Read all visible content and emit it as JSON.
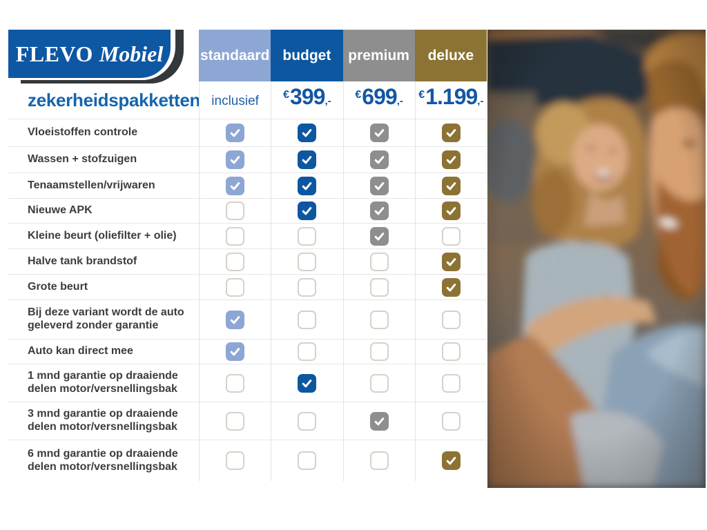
{
  "brand": {
    "logo_primary": "FLEVO",
    "logo_secondary": "Mobiel"
  },
  "title": "zekerheidspakketten",
  "packages": [
    {
      "label": "standaard",
      "color": "#8da6d4",
      "price_text": "inclusief"
    },
    {
      "label": "budget",
      "color": "#0c57a0",
      "price_currency": "€",
      "price_amount": "399",
      "price_suffix": ",-"
    },
    {
      "label": "premium",
      "color": "#8e8e8e",
      "price_currency": "€",
      "price_amount": "699",
      "price_suffix": ",-"
    },
    {
      "label": "deluxe",
      "color": "#8c7334",
      "price_currency": "€",
      "price_amount": "1.199",
      "price_suffix": ",-"
    }
  ],
  "features": [
    {
      "label": "Vloeistoffen controle",
      "included": [
        true,
        true,
        true,
        true
      ]
    },
    {
      "label": "Wassen + stofzuigen",
      "included": [
        true,
        true,
        true,
        true
      ]
    },
    {
      "label": "Tenaamstellen/vrijwaren",
      "included": [
        true,
        true,
        true,
        true
      ]
    },
    {
      "label": "Nieuwe APK",
      "included": [
        false,
        true,
        true,
        true
      ]
    },
    {
      "label": "Kleine beurt (oliefilter + olie)",
      "included": [
        false,
        false,
        true,
        false
      ]
    },
    {
      "label": "Halve tank brandstof",
      "included": [
        false,
        false,
        false,
        true
      ]
    },
    {
      "label": "Grote beurt",
      "included": [
        false,
        false,
        false,
        true
      ]
    },
    {
      "label": "Bij deze variant wordt de auto geleverd zonder garantie",
      "included": [
        true,
        false,
        false,
        false
      ]
    },
    {
      "label": "Auto kan direct mee",
      "included": [
        true,
        false,
        false,
        false
      ]
    },
    {
      "label": "1 mnd garantie op draaiende delen motor/versnellingsbak",
      "included": [
        false,
        true,
        false,
        false
      ]
    },
    {
      "label": "3 mnd garantie op draaiende delen motor/versnellingsbak",
      "included": [
        false,
        false,
        true,
        false
      ]
    },
    {
      "label": "6 mnd garantie op draaiende delen motor/versnellingsbak",
      "included": [
        false,
        false,
        false,
        true
      ]
    }
  ],
  "photo": {
    "description": "Smiling couple sitting in a car"
  },
  "colors": {
    "logo_blue": "#0e57a3",
    "logo_dark": "#35383a",
    "title_blue": "#1565ac",
    "price_blue": "#1457a2",
    "standaard": "#8da6d4",
    "budget": "#0c57a0",
    "premium": "#8e8e8e",
    "deluxe": "#8c7334",
    "grid_line": "#e7e6e3"
  },
  "chart_data": {
    "type": "table",
    "title": "zekerheidspakketten",
    "columns": [
      "standaard",
      "budget",
      "premium",
      "deluxe"
    ],
    "prices": [
      "inclusief",
      "€399,-",
      "€699,-",
      "€1.199,-"
    ],
    "rows": [
      {
        "label": "Vloeistoffen controle",
        "values": [
          true,
          true,
          true,
          true
        ]
      },
      {
        "label": "Wassen + stofzuigen",
        "values": [
          true,
          true,
          true,
          true
        ]
      },
      {
        "label": "Tenaamstellen/vrijwaren",
        "values": [
          true,
          true,
          true,
          true
        ]
      },
      {
        "label": "Nieuwe APK",
        "values": [
          false,
          true,
          true,
          true
        ]
      },
      {
        "label": "Kleine beurt (oliefilter + olie)",
        "values": [
          false,
          false,
          true,
          false
        ]
      },
      {
        "label": "Halve tank brandstof",
        "values": [
          false,
          false,
          false,
          true
        ]
      },
      {
        "label": "Grote beurt",
        "values": [
          false,
          false,
          false,
          true
        ]
      },
      {
        "label": "Bij deze variant wordt de auto geleverd zonder garantie",
        "values": [
          true,
          false,
          false,
          false
        ]
      },
      {
        "label": "Auto kan direct mee",
        "values": [
          true,
          false,
          false,
          false
        ]
      },
      {
        "label": "1 mnd garantie op draaiende delen motor/versnellingsbak",
        "values": [
          false,
          true,
          false,
          false
        ]
      },
      {
        "label": "3 mnd garantie op draaiende delen motor/versnellingsbak",
        "values": [
          false,
          false,
          true,
          false
        ]
      },
      {
        "label": "6 mnd garantie op draaiende delen motor/versnellingsbak",
        "values": [
          false,
          false,
          false,
          true
        ]
      }
    ],
    "legend_position": "none",
    "grid": true
  }
}
